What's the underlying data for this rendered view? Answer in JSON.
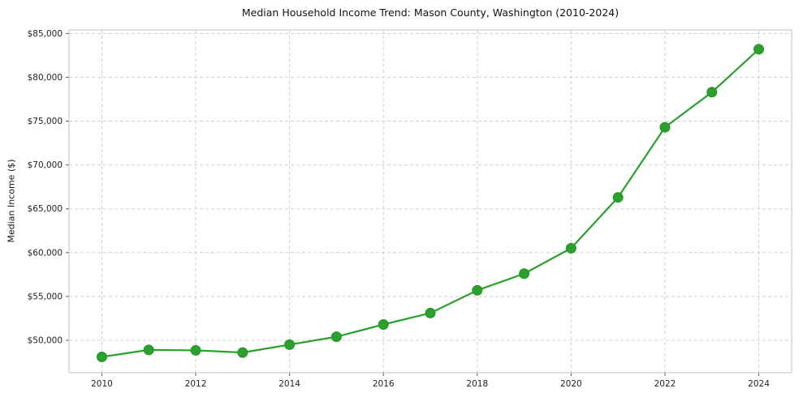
{
  "chart": {
    "title": "Median Household Income Trend: Mason County, Washington (2010-2024)",
    "ylabel": "Median Income ($)"
  },
  "chart_data": {
    "type": "line",
    "title": "Median Household Income Trend: Mason County, Washington (2010-2024)",
    "xlabel": "",
    "ylabel": "Median Income ($)",
    "x": [
      2010,
      2011,
      2012,
      2013,
      2014,
      2015,
      2016,
      2017,
      2018,
      2019,
      2020,
      2021,
      2022,
      2023,
      2024
    ],
    "values": [
      48100,
      48900,
      48850,
      48600,
      49500,
      50400,
      51800,
      53100,
      55700,
      57600,
      60500,
      66300,
      74300,
      78300,
      83200
    ],
    "x_ticks": [
      2010,
      2012,
      2014,
      2016,
      2018,
      2020,
      2022,
      2024
    ],
    "x_tick_labels": [
      "2010",
      "2012",
      "2014",
      "2016",
      "2018",
      "2020",
      "2022",
      "2024"
    ],
    "y_ticks": [
      50000,
      55000,
      60000,
      65000,
      70000,
      75000,
      80000,
      85000
    ],
    "y_tick_labels": [
      "$50,000",
      "$55,000",
      "$60,000",
      "$65,000",
      "$70,000",
      "$75,000",
      "$80,000",
      "$85,000"
    ],
    "xlim": [
      2009.3,
      2024.7
    ],
    "ylim": [
      46300,
      85400
    ],
    "grid": true,
    "grid_style": "dashed",
    "grid_color": "#d0d0d0",
    "line_color": "#2ca02c",
    "marker": "circle",
    "marker_color": "#2ca02c",
    "legend": "none",
    "background": "#ffffff"
  }
}
